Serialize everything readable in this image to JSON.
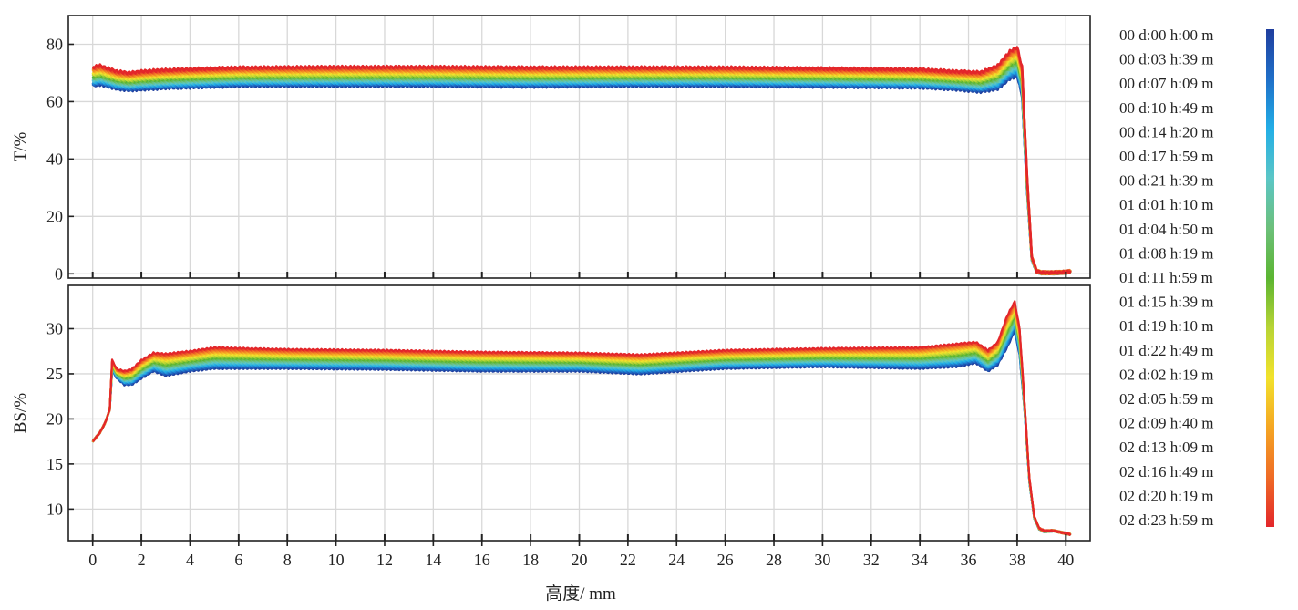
{
  "chart_data": [
    {
      "type": "line",
      "panel": "top",
      "ylabel": "T/%",
      "xlim": [
        -1,
        41
      ],
      "ylim": [
        -1.5,
        90
      ],
      "x_ticks": [
        0,
        2,
        4,
        6,
        8,
        10,
        12,
        14,
        16,
        18,
        20,
        22,
        24,
        26,
        28,
        30,
        32,
        34,
        36,
        38,
        40
      ],
      "y_ticks": [
        0,
        20,
        40,
        60,
        80
      ],
      "y_tick_labels": [
        "0",
        "20",
        "40",
        "60",
        "80"
      ],
      "grid": true,
      "series_note": "21 overlapping profiles, one per scan time listed in the legend, colored blue (first scan) to red (last scan)",
      "profile_first_scan": {
        "x": [
          0,
          0.3,
          1.0,
          1.5,
          2.0,
          2.5,
          3.0,
          4.0,
          6.0,
          10.0,
          14.0,
          18.0,
          22.0,
          26.0,
          30.0,
          34.0,
          35.5,
          36.5,
          37.2,
          37.7,
          38.0,
          38.2,
          38.4,
          38.6,
          38.8,
          39.0,
          39.5,
          40.0,
          40.2
        ],
        "y": [
          65.5,
          66.0,
          64.5,
          64.0,
          64.3,
          64.5,
          64.8,
          65.0,
          65.5,
          65.5,
          65.5,
          65.3,
          65.5,
          65.5,
          65.3,
          65.0,
          64.3,
          63.5,
          64.5,
          68.0,
          69.0,
          62.0,
          30.0,
          5.0,
          0.8,
          0.3,
          0.3,
          0.5,
          0.8
        ]
      },
      "profile_last_scan": {
        "x": [
          0,
          0.3,
          1.0,
          1.5,
          2.0,
          2.5,
          3.0,
          4.0,
          6.0,
          10.0,
          14.0,
          18.0,
          22.0,
          26.0,
          30.0,
          34.0,
          35.5,
          36.5,
          37.2,
          37.7,
          38.0,
          38.2,
          38.4,
          38.6,
          38.8,
          39.0,
          39.5,
          40.0,
          40.2
        ],
        "y": [
          72.0,
          72.5,
          70.5,
          70.0,
          70.5,
          70.8,
          71.0,
          71.3,
          71.8,
          72.0,
          72.0,
          71.8,
          71.8,
          71.8,
          71.5,
          71.2,
          70.5,
          70.2,
          72.5,
          77.5,
          79.0,
          72.0,
          35.0,
          6.0,
          1.0,
          0.4,
          0.4,
          0.6,
          0.9
        ]
      }
    },
    {
      "type": "line",
      "panel": "bottom",
      "ylabel": "BS/%",
      "xlabel": "高度/ mm",
      "xlim": [
        -1,
        41
      ],
      "ylim": [
        6.5,
        34.8
      ],
      "x_ticks": [
        0,
        2,
        4,
        6,
        8,
        10,
        12,
        14,
        16,
        18,
        20,
        22,
        24,
        26,
        28,
        30,
        32,
        34,
        36,
        38,
        40
      ],
      "x_tick_labels": [
        "0",
        "2",
        "4",
        "6",
        "8",
        "10",
        "12",
        "14",
        "16",
        "18",
        "20",
        "22",
        "24",
        "26",
        "28",
        "30",
        "32",
        "34",
        "36",
        "38",
        "40"
      ],
      "y_ticks": [
        10,
        15,
        20,
        25,
        30
      ],
      "y_tick_labels": [
        "10",
        "15",
        "20",
        "25",
        "30"
      ],
      "grid": true,
      "series_note": "21 overlapping profiles, one per scan time listed in the legend, colored blue (first scan) to red (last scan)",
      "profile_first_scan": {
        "x": [
          0,
          0.3,
          0.5,
          0.7,
          0.8,
          1.0,
          1.3,
          1.6,
          2.0,
          2.5,
          3.0,
          4.0,
          5.0,
          8.0,
          12.0,
          16.0,
          20.0,
          22.5,
          26.0,
          30.0,
          34.0,
          35.5,
          36.3,
          36.8,
          37.2,
          37.6,
          37.9,
          38.1,
          38.3,
          38.5,
          38.7,
          38.9,
          39.1,
          39.5,
          40.0,
          40.2
        ],
        "y": [
          17.5,
          18.5,
          19.5,
          21.0,
          25.3,
          24.5,
          23.8,
          23.8,
          24.5,
          25.3,
          24.8,
          25.3,
          25.6,
          25.6,
          25.5,
          25.3,
          25.3,
          25.0,
          25.6,
          25.8,
          25.6,
          25.8,
          26.2,
          25.3,
          26.0,
          28.0,
          29.8,
          27.0,
          21.0,
          13.0,
          9.0,
          7.8,
          7.5,
          7.6,
          7.3,
          7.2
        ]
      },
      "profile_last_scan": {
        "x": [
          0,
          0.3,
          0.5,
          0.7,
          0.8,
          1.0,
          1.3,
          1.6,
          2.0,
          2.5,
          3.0,
          4.0,
          5.0,
          8.0,
          12.0,
          16.0,
          20.0,
          22.5,
          26.0,
          30.0,
          34.0,
          35.5,
          36.3,
          36.8,
          37.2,
          37.6,
          37.9,
          38.1,
          38.3,
          38.5,
          38.7,
          38.9,
          39.1,
          39.5,
          40.0,
          40.2
        ],
        "y": [
          17.5,
          18.5,
          19.5,
          21.0,
          26.5,
          25.5,
          25.3,
          25.5,
          26.5,
          27.3,
          27.2,
          27.5,
          27.9,
          27.7,
          27.6,
          27.4,
          27.3,
          27.1,
          27.6,
          27.8,
          27.9,
          28.3,
          28.5,
          27.6,
          28.5,
          31.5,
          33.0,
          30.0,
          22.0,
          13.5,
          9.2,
          7.9,
          7.6,
          7.6,
          7.3,
          7.2
        ]
      }
    }
  ],
  "legend": {
    "entries": [
      "00 d:00 h:00 m",
      "00 d:03 h:39 m",
      "00 d:07 h:09 m",
      "00 d:10 h:49 m",
      "00 d:14 h:20 m",
      "00 d:17 h:59 m",
      "00 d:21 h:39 m",
      "01 d:01 h:10 m",
      "01 d:04 h:50 m",
      "01 d:08 h:19 m",
      "01 d:11 h:59 m",
      "01 d:15 h:39 m",
      "01 d:19 h:10 m",
      "01 d:22 h:49 m",
      "02 d:02 h:19 m",
      "02 d:05 h:59 m",
      "02 d:09 h:40 m",
      "02 d:13 h:09 m",
      "02 d:16 h:49 m",
      "02 d:20 h:19 m",
      "02 d:23 h:59 m"
    ],
    "colorbar_colors": [
      "#1f3e9e",
      "#1f6fc8",
      "#22aee6",
      "#5bc6c6",
      "#6cc07a",
      "#5bb531",
      "#b8d435",
      "#f2e22c",
      "#f5a623",
      "#ef6b26",
      "#e3262a"
    ],
    "placement": "right"
  },
  "colors": {
    "grid": "#d8d8d8",
    "frame": "#222222",
    "first_scan": "#1f3e9e",
    "last_scan": "#e3262a"
  }
}
